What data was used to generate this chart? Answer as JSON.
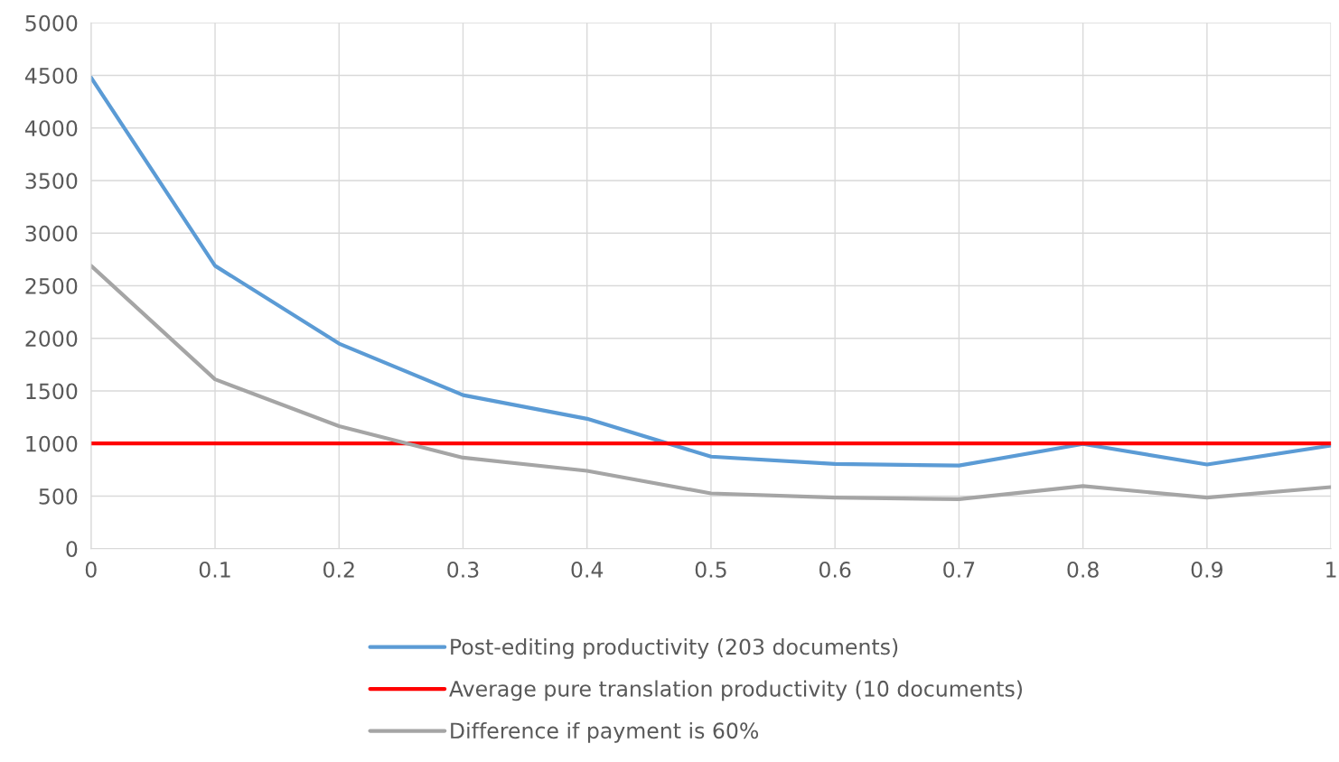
{
  "chart_data": {
    "type": "line",
    "x": [
      0,
      0.1,
      0.2,
      0.3,
      0.4,
      0.5,
      0.6,
      0.7,
      0.8,
      0.9,
      1
    ],
    "series": [
      {
        "name": "Post-editing productivity (203 documents)",
        "color": "#5b9bd5",
        "values": [
          4480,
          2690,
          1950,
          1460,
          1235,
          875,
          805,
          790,
          995,
          800,
          980
        ]
      },
      {
        "name": "Average pure translation productivity (10 documents)",
        "color": "#ff0000",
        "values": [
          1000,
          1000,
          1000,
          1000,
          1000,
          1000,
          1000,
          1000,
          1000,
          1000,
          1000
        ]
      },
      {
        "name": "Difference if payment is 60%",
        "color": "#a5a5a5",
        "values": [
          2690,
          1610,
          1165,
          865,
          740,
          525,
          485,
          470,
          595,
          485,
          585
        ]
      }
    ],
    "xlim": [
      0,
      1
    ],
    "xticks": [
      0,
      0.1,
      0.2,
      0.3,
      0.4,
      0.5,
      0.6,
      0.7,
      0.8,
      0.9,
      1
    ],
    "ylim": [
      0,
      5000
    ],
    "yticks": [
      0,
      500,
      1000,
      1500,
      2000,
      2500,
      3000,
      3500,
      4000,
      4500,
      5000
    ],
    "grid": true,
    "legend": "bottom",
    "marker": "none",
    "line_style": "solid"
  }
}
